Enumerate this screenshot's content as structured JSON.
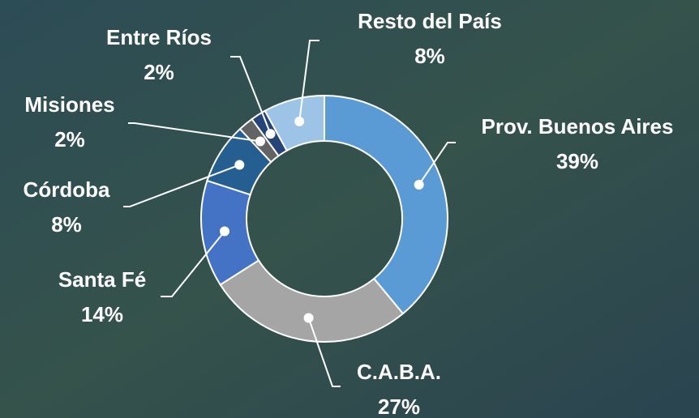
{
  "chart_data": {
    "type": "donut",
    "categories": [
      "Prov. Buenos Aires",
      "C.A.B.A.",
      "Santa Fé",
      "Córdoba",
      "Misiones",
      "Entre Ríos",
      "Resto del País"
    ],
    "values": [
      39,
      27,
      14,
      8,
      2,
      2,
      8
    ],
    "value_labels": [
      "39%",
      "27%",
      "14%",
      "8%",
      "2%",
      "2%",
      "8%"
    ],
    "colors": [
      "#5b9bd5",
      "#a5a5a5",
      "#4472c4",
      "#255e91",
      "#636363",
      "#264478",
      "#9dc3e6"
    ]
  }
}
